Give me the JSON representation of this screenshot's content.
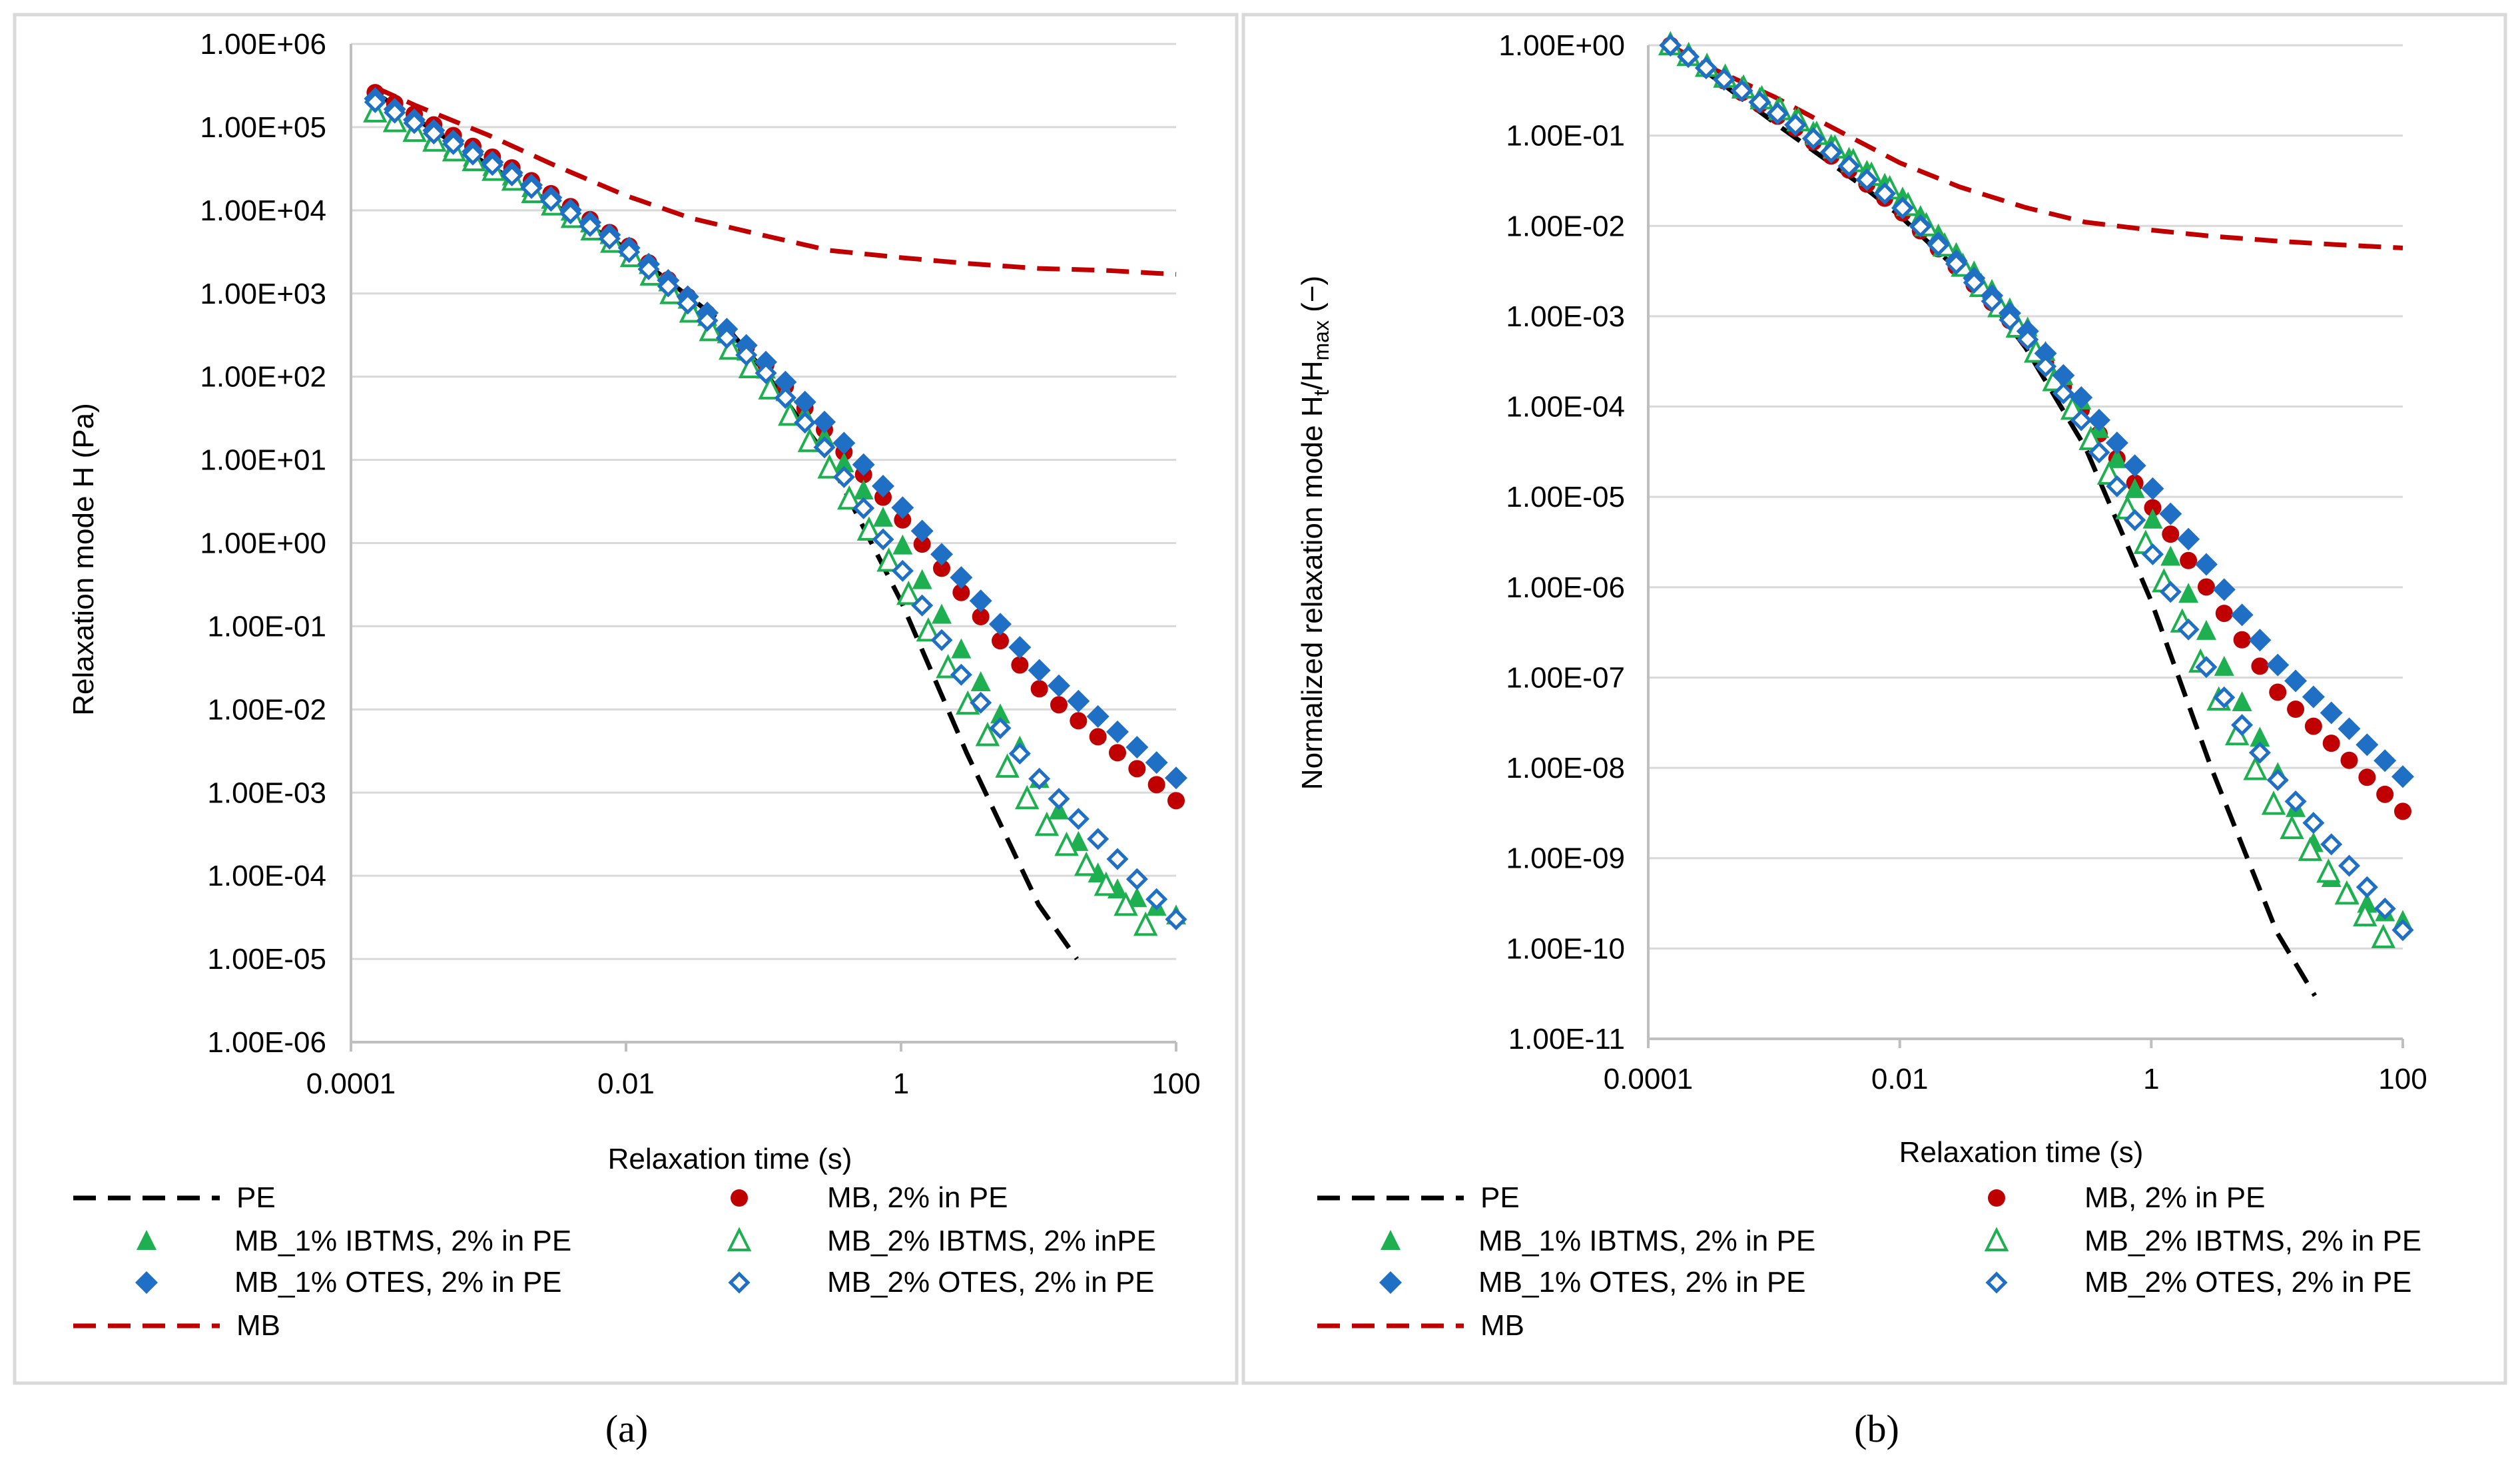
{
  "colors": {
    "PE": "#000000",
    "MB_2pct_in_PE": "#c00000",
    "MB_1pct_IBTMS": "#1eb050",
    "MB_2pct_IBTMS": "#1eb050",
    "MB_1pct_OTES": "#1f6fc4",
    "MB_2pct_OTES": "#1f6fc4",
    "MB": "#c00000"
  },
  "legend": {
    "pe": "PE",
    "mb_in_pe": "MB, 2% in PE",
    "mb1_ibtms": "MB_1% IBTMS, 2% in PE",
    "mb2_ibtms_a": "MB_2% IBTMS, 2% inPE",
    "mb2_ibtms_b": "MB_2% IBTMS, 2% in PE",
    "mb1_otes": "MB_1% OTES, 2% in PE",
    "mb2_otes": "MB_2% OTES, 2% in PE",
    "mb": "MB"
  },
  "captions": {
    "a": "(a)",
    "b": "(b)"
  },
  "chart_data": [
    {
      "id": "a",
      "type": "scatter",
      "xscale": "log",
      "yscale": "log",
      "xlabel": "Relaxation time (s)",
      "ylabel": "Relaxation mode H (Pa)",
      "xlim": [
        0.0001,
        100
      ],
      "ylim": [
        1e-06,
        1000000.0
      ],
      "xticks": [
        0.0001,
        0.01,
        1,
        100
      ],
      "xtick_labels": [
        "0.0001",
        "0.01",
        "1",
        "100"
      ],
      "yticks": [
        1000000.0,
        100000.0,
        10000.0,
        1000.0,
        100.0,
        10.0,
        1.0,
        0.1,
        0.01,
        0.001,
        0.0001,
        1e-05,
        1e-06
      ],
      "ytick_labels": [
        "1.00E+06",
        "1.00E+05",
        "1.00E+04",
        "1.00E+03",
        "1.00E+02",
        "1.00E+01",
        "1.00E+00",
        "1.00E-01",
        "1.00E-02",
        "1.00E-03",
        "1.00E-04",
        "1.00E-05",
        "1.00E-06"
      ],
      "grid": "horizontal",
      "legend_position": "bottom",
      "series": [
        {
          "name": "PE",
          "style": "dashed-line",
          "color_key": "PE",
          "points": [
            [
              0.00016,
              240000.0
            ],
            [
              0.001,
              35000.0
            ],
            [
              0.005,
              7000.0
            ],
            [
              0.01,
              3500.0
            ],
            [
              0.05,
              450.0
            ],
            [
              0.1,
              120.0
            ],
            [
              0.3,
              10.0
            ],
            [
              1,
              0.2
            ],
            [
              3,
              0.003
            ],
            [
              10,
              4.5e-05
            ],
            [
              19,
              1e-05
            ]
          ]
        },
        {
          "name": "MB",
          "style": "dashed-line",
          "color_key": "MB",
          "points": [
            [
              0.00015,
              300000.0
            ],
            [
              0.0003,
              180000.0
            ],
            [
              0.001,
              80000.0
            ],
            [
              0.003,
              35000.0
            ],
            [
              0.01,
              15000.0
            ],
            [
              0.03,
              8000.0
            ],
            [
              0.1,
              5000.0
            ],
            [
              0.3,
              3300.0
            ],
            [
              1,
              2700.0
            ],
            [
              3,
              2300.0
            ],
            [
              10,
              2000.0
            ],
            [
              30,
              1900.0
            ],
            [
              100,
              1700.0
            ]
          ]
        },
        {
          "name": "MB, 2% in PE",
          "style": "circle",
          "color_key": "MB_2pct_in_PE",
          "anchors": [
            [
              0.00015,
              260000.0
            ],
            [
              0.0015,
              32000.0
            ],
            [
              0.01,
              4000.0
            ],
            [
              0.1,
              150.0
            ],
            [
              0.3,
              20.0
            ],
            [
              1,
              2.0
            ],
            [
              10,
              0.018
            ],
            [
              100,
              0.0008
            ]
          ],
          "count": 42
        },
        {
          "name": "MB_1% IBTMS, 2% in PE",
          "style": "triangle-filled",
          "color_key": "MB_1pct_IBTMS",
          "anchors": [
            [
              0.00015,
              160000.0
            ],
            [
              0.0015,
              25000.0
            ],
            [
              0.01,
              3800.0
            ],
            [
              0.1,
              130.0
            ],
            [
              0.3,
              16.0
            ],
            [
              1,
              1.0
            ],
            [
              3,
              0.04
            ],
            [
              10,
              0.0015
            ],
            [
              30,
              8e-05
            ],
            [
              100,
              3.3e-05
            ]
          ],
          "count": 42
        },
        {
          "name": "MB_2% IBTMS, 2% inPE",
          "style": "triangle-open",
          "color_key": "MB_2pct_IBTMS",
          "anchors": [
            [
              0.00015,
              150000.0
            ],
            [
              0.0015,
              23000.0
            ],
            [
              0.01,
              3200.0
            ],
            [
              0.1,
              90.0
            ],
            [
              0.3,
              8.0
            ],
            [
              1,
              0.35
            ],
            [
              3,
              0.012
            ],
            [
              10,
              0.0005
            ],
            [
              60,
              2.5e-05
            ]
          ],
          "count": 40
        },
        {
          "name": "MB_1% OTES, 2% in PE",
          "style": "diamond-filled",
          "color_key": "MB_1pct_OTES",
          "anchors": [
            [
              0.00015,
              220000.0
            ],
            [
              0.0015,
              28000.0
            ],
            [
              0.01,
              3800.0
            ],
            [
              0.1,
              160.0
            ],
            [
              0.3,
              25.0
            ],
            [
              1,
              2.8
            ],
            [
              10,
              0.03
            ],
            [
              100,
              0.0015
            ]
          ],
          "count": 42
        },
        {
          "name": "MB_2% OTES, 2% in PE",
          "style": "diamond-open",
          "color_key": "MB_2pct_OTES",
          "anchors": [
            [
              0.00015,
              200000.0
            ],
            [
              0.0015,
              26000.0
            ],
            [
              0.01,
              3400.0
            ],
            [
              0.1,
              120.0
            ],
            [
              0.3,
              12.0
            ],
            [
              1,
              0.5
            ],
            [
              3,
              0.02
            ],
            [
              10,
              0.0015
            ],
            [
              100,
              3e-05
            ]
          ],
          "count": 42
        }
      ]
    },
    {
      "id": "b",
      "type": "scatter",
      "xscale": "log",
      "yscale": "log",
      "xlabel": "Relaxation time (s)",
      "ylabel": "Normalized relaxation mode H",
      "ylabel_sub1": "t",
      "ylabel_mid": "/H",
      "ylabel_sub2": "max",
      "ylabel_tail": " (−)",
      "xlim": [
        0.0001,
        100
      ],
      "ylim": [
        1e-11,
        1
      ],
      "xticks": [
        0.0001,
        0.01,
        1,
        100
      ],
      "xtick_labels": [
        "0.0001",
        "0.01",
        "1",
        "100"
      ],
      "yticks": [
        1,
        0.1,
        0.01,
        0.001,
        0.0001,
        1e-05,
        1e-06,
        1e-07,
        1e-08,
        1e-09,
        1e-10,
        1e-11
      ],
      "ytick_labels": [
        "1.00E+00",
        "1.00E-01",
        "1.00E-02",
        "1.00E-03",
        "1.00E-04",
        "1.00E-05",
        "1.00E-06",
        "1.00E-07",
        "1.00E-08",
        "1.00E-09",
        "1.00E-10",
        "1.00E-11"
      ],
      "grid": "horizontal",
      "legend_position": "bottom",
      "series": [
        {
          "name": "PE",
          "style": "dashed-line",
          "color_key": "PE",
          "points": [
            [
              0.00015,
              1.0
            ],
            [
              0.001,
              0.14
            ],
            [
              0.005,
              0.028
            ],
            [
              0.01,
              0.013
            ],
            [
              0.05,
              0.0016
            ],
            [
              0.1,
              0.00045
            ],
            [
              0.3,
              3.5e-05
            ],
            [
              1,
              7e-07
            ],
            [
              3,
              1e-08
            ],
            [
              10,
              1.5e-10
            ],
            [
              20,
              3e-11
            ]
          ]
        },
        {
          "name": "MB",
          "style": "dashed-line",
          "color_key": "MB",
          "points": [
            [
              0.00015,
              1.0
            ],
            [
              0.0003,
              0.58
            ],
            [
              0.001,
              0.27
            ],
            [
              0.003,
              0.12
            ],
            [
              0.01,
              0.05
            ],
            [
              0.03,
              0.027
            ],
            [
              0.1,
              0.016
            ],
            [
              0.3,
              0.011
            ],
            [
              1,
              0.009
            ],
            [
              3,
              0.0077
            ],
            [
              10,
              0.0068
            ],
            [
              30,
              0.0062
            ],
            [
              100,
              0.0057
            ]
          ]
        },
        {
          "name": "MB, 2% in PE",
          "style": "circle",
          "color_key": "MB_2pct_in_PE",
          "anchors": [
            [
              0.00015,
              1.0
            ],
            [
              0.0015,
              0.12
            ],
            [
              0.01,
              0.015
            ],
            [
              0.1,
              0.0006
            ],
            [
              0.3,
              8e-05
            ],
            [
              1,
              8e-06
            ],
            [
              10,
              7e-08
            ],
            [
              100,
              3.3e-09
            ]
          ],
          "count": 42
        },
        {
          "name": "MB_1% IBTMS, 2% in PE",
          "style": "triangle-filled",
          "color_key": "MB_1pct_IBTMS",
          "anchors": [
            [
              0.00015,
              1.0
            ],
            [
              0.0015,
              0.15
            ],
            [
              0.01,
              0.022
            ],
            [
              0.1,
              0.0008
            ],
            [
              0.3,
              0.0001
            ],
            [
              1,
              6e-06
            ],
            [
              3,
              2.5e-07
            ],
            [
              10,
              9e-09
            ],
            [
              30,
              4.5e-10
            ],
            [
              100,
              2e-10
            ]
          ],
          "count": 42
        },
        {
          "name": "MB_2% IBTMS, 2% in PE",
          "style": "triangle-open",
          "color_key": "MB_2pct_IBTMS",
          "anchors": [
            [
              0.00015,
              1.0
            ],
            [
              0.0015,
              0.15
            ],
            [
              0.01,
              0.021
            ],
            [
              0.1,
              0.0006
            ],
            [
              0.3,
              5.5e-05
            ],
            [
              1,
              2.3e-06
            ],
            [
              3,
              8e-08
            ],
            [
              10,
              3.3e-09
            ],
            [
              70,
              1.3e-10
            ]
          ],
          "count": 40
        },
        {
          "name": "MB_1% OTES, 2% in PE",
          "style": "diamond-filled",
          "color_key": "MB_1pct_OTES",
          "anchors": [
            [
              0.00015,
              1.0
            ],
            [
              0.0015,
              0.13
            ],
            [
              0.01,
              0.017
            ],
            [
              0.1,
              0.00073
            ],
            [
              0.3,
              0.00011
            ],
            [
              1,
              1.3e-05
            ],
            [
              10,
              1.4e-07
            ],
            [
              100,
              8e-09
            ]
          ],
          "count": 42
        },
        {
          "name": "MB_2% OTES, 2% in PE",
          "style": "diamond-open",
          "color_key": "MB_2pct_OTES",
          "anchors": [
            [
              0.00015,
              1.0
            ],
            [
              0.0015,
              0.13
            ],
            [
              0.01,
              0.017
            ],
            [
              0.1,
              0.0006
            ],
            [
              0.3,
              6e-05
            ],
            [
              1,
              2.5e-06
            ],
            [
              3,
              1e-07
            ],
            [
              10,
              7.5e-09
            ],
            [
              100,
              1.6e-10
            ]
          ],
          "count": 42
        }
      ]
    }
  ]
}
